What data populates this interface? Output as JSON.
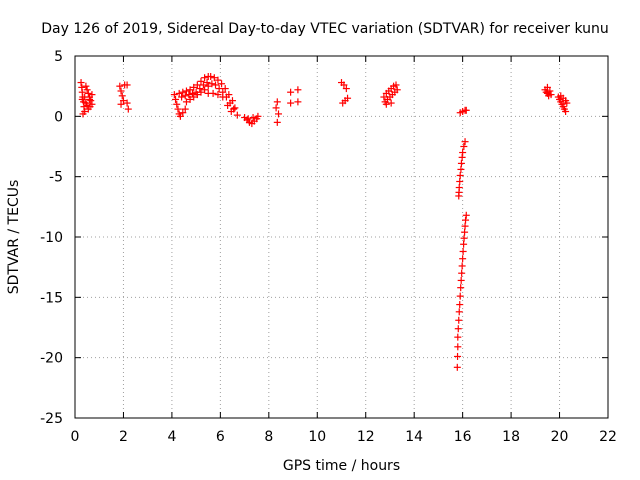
{
  "chart_data": {
    "type": "scatter",
    "title": "Day 126 of 2019, Sidereal Day-to-day VTEC variation (SDTVAR) for receiver kunu",
    "xlabel": "GPS time / hours",
    "ylabel": "SDTVAR / TECUs",
    "xlim": [
      0,
      22
    ],
    "ylim": [
      -25,
      5
    ],
    "xticks": [
      0,
      2,
      4,
      6,
      8,
      10,
      12,
      14,
      16,
      18,
      20,
      22
    ],
    "yticks": [
      5,
      0,
      -5,
      -10,
      -15,
      -20,
      -25
    ],
    "grid": true,
    "marker": "+",
    "color": "#ff0000",
    "series": [
      {
        "name": "SDTVAR",
        "points": [
          [
            0.25,
            2.8
          ],
          [
            0.28,
            2.4
          ],
          [
            0.3,
            2.0
          ],
          [
            0.32,
            1.6
          ],
          [
            0.35,
            1.2
          ],
          [
            0.37,
            0.8
          ],
          [
            0.4,
            0.4
          ],
          [
            0.33,
            0.2
          ],
          [
            0.45,
            2.5
          ],
          [
            0.5,
            2.2
          ],
          [
            0.55,
            1.9
          ],
          [
            0.6,
            1.6
          ],
          [
            0.65,
            1.3
          ],
          [
            0.7,
            1.0
          ],
          [
            0.5,
            0.9
          ],
          [
            0.55,
            0.6
          ],
          [
            0.3,
            1.4
          ],
          [
            0.4,
            1.6
          ],
          [
            0.6,
            1.4
          ],
          [
            0.7,
            1.8
          ],
          [
            0.45,
            1.1
          ],
          [
            0.62,
            0.8
          ],
          [
            1.85,
            2.5
          ],
          [
            1.9,
            2.1
          ],
          [
            1.95,
            1.7
          ],
          [
            2.0,
            1.3
          ],
          [
            1.9,
            1.0
          ],
          [
            2.05,
            2.6
          ],
          [
            2.15,
            2.6
          ],
          [
            2.15,
            1.1
          ],
          [
            2.2,
            0.6
          ],
          [
            4.1,
            1.8
          ],
          [
            4.15,
            1.4
          ],
          [
            4.2,
            1.0
          ],
          [
            4.25,
            0.6
          ],
          [
            4.3,
            0.2
          ],
          [
            4.35,
            0.0
          ],
          [
            4.45,
            0.3
          ],
          [
            4.55,
            0.6
          ],
          [
            4.3,
            1.9
          ],
          [
            4.45,
            2.0
          ],
          [
            4.6,
            2.1
          ],
          [
            4.75,
            2.2
          ],
          [
            4.9,
            2.4
          ],
          [
            5.05,
            2.6
          ],
          [
            5.2,
            2.9
          ],
          [
            5.35,
            3.2
          ],
          [
            5.5,
            3.3
          ],
          [
            4.4,
            1.6
          ],
          [
            4.55,
            1.7
          ],
          [
            4.7,
            1.8
          ],
          [
            4.85,
            1.9
          ],
          [
            5.0,
            2.0
          ],
          [
            5.15,
            2.3
          ],
          [
            5.3,
            2.6
          ],
          [
            5.45,
            2.8
          ],
          [
            4.6,
            1.2
          ],
          [
            4.75,
            1.4
          ],
          [
            4.9,
            1.6
          ],
          [
            5.05,
            1.8
          ],
          [
            5.2,
            2.0
          ],
          [
            5.35,
            2.2
          ],
          [
            5.5,
            2.5
          ],
          [
            5.65,
            2.7
          ],
          [
            5.6,
            3.3
          ],
          [
            5.75,
            3.2
          ],
          [
            5.9,
            3.0
          ],
          [
            6.05,
            2.7
          ],
          [
            6.2,
            2.3
          ],
          [
            6.35,
            1.8
          ],
          [
            6.5,
            1.3
          ],
          [
            6.6,
            0.7
          ],
          [
            6.7,
            0.1
          ],
          [
            5.8,
            2.6
          ],
          [
            5.95,
            2.3
          ],
          [
            6.1,
            2.0
          ],
          [
            6.25,
            1.6
          ],
          [
            6.4,
            1.1
          ],
          [
            6.55,
            0.6
          ],
          [
            5.5,
            1.9
          ],
          [
            5.7,
            1.9
          ],
          [
            5.9,
            1.8
          ],
          [
            6.1,
            1.6
          ],
          [
            6.3,
            0.9
          ],
          [
            6.45,
            0.4
          ],
          [
            7.0,
            -0.1
          ],
          [
            7.1,
            -0.3
          ],
          [
            7.2,
            -0.5
          ],
          [
            7.3,
            -0.6
          ],
          [
            7.4,
            -0.4
          ],
          [
            7.5,
            -0.2
          ],
          [
            7.55,
            0.0
          ],
          [
            7.15,
            -0.2
          ],
          [
            7.35,
            -0.1
          ],
          [
            8.35,
            1.2
          ],
          [
            8.3,
            0.7
          ],
          [
            8.4,
            0.2
          ],
          [
            8.35,
            -0.5
          ],
          [
            8.9,
            2.0
          ],
          [
            8.9,
            1.1
          ],
          [
            9.2,
            2.2
          ],
          [
            9.2,
            1.2
          ],
          [
            11.0,
            2.8
          ],
          [
            11.1,
            2.6
          ],
          [
            11.2,
            2.3
          ],
          [
            11.05,
            1.1
          ],
          [
            11.15,
            1.3
          ],
          [
            11.25,
            1.5
          ],
          [
            12.75,
            1.6
          ],
          [
            12.85,
            1.9
          ],
          [
            12.95,
            2.1
          ],
          [
            13.05,
            2.3
          ],
          [
            13.15,
            2.5
          ],
          [
            13.25,
            2.6
          ],
          [
            12.8,
            1.2
          ],
          [
            12.9,
            1.4
          ],
          [
            13.0,
            1.6
          ],
          [
            13.1,
            1.8
          ],
          [
            13.2,
            2.0
          ],
          [
            13.3,
            2.2
          ],
          [
            12.85,
            1.0
          ],
          [
            13.05,
            1.1
          ],
          [
            15.9,
            0.3
          ],
          [
            16.0,
            0.4
          ],
          [
            16.1,
            0.5
          ],
          [
            16.15,
            0.5
          ],
          [
            16.1,
            -2.1
          ],
          [
            16.05,
            -2.5
          ],
          [
            16.0,
            -3.0
          ],
          [
            15.98,
            -3.4
          ],
          [
            15.95,
            -3.9
          ],
          [
            15.93,
            -4.4
          ],
          [
            15.9,
            -4.9
          ],
          [
            15.88,
            -5.4
          ],
          [
            15.86,
            -5.9
          ],
          [
            15.85,
            -6.3
          ],
          [
            15.84,
            -6.6
          ],
          [
            16.15,
            -8.2
          ],
          [
            16.12,
            -8.6
          ],
          [
            16.1,
            -9.1
          ],
          [
            16.08,
            -9.6
          ],
          [
            16.06,
            -10.1
          ],
          [
            16.04,
            -10.6
          ],
          [
            16.02,
            -11.2
          ],
          [
            16.0,
            -11.8
          ],
          [
            15.98,
            -12.4
          ],
          [
            15.96,
            -13.0
          ],
          [
            15.94,
            -13.6
          ],
          [
            15.92,
            -14.2
          ],
          [
            15.9,
            -14.9
          ],
          [
            15.88,
            -15.6
          ],
          [
            15.86,
            -16.2
          ],
          [
            15.84,
            -16.9
          ],
          [
            15.82,
            -17.6
          ],
          [
            15.8,
            -18.3
          ],
          [
            15.8,
            -19.1
          ],
          [
            15.79,
            -19.9
          ],
          [
            15.78,
            -20.8
          ],
          [
            19.4,
            2.2
          ],
          [
            19.45,
            2.0
          ],
          [
            19.5,
            1.9
          ],
          [
            19.55,
            1.7
          ],
          [
            19.6,
            2.1
          ],
          [
            19.65,
            1.8
          ],
          [
            19.5,
            2.4
          ],
          [
            19.95,
            1.6
          ],
          [
            20.0,
            1.4
          ],
          [
            20.05,
            1.2
          ],
          [
            20.1,
            1.0
          ],
          [
            20.15,
            0.8
          ],
          [
            20.2,
            0.6
          ],
          [
            20.25,
            0.4
          ],
          [
            20.05,
            1.7
          ],
          [
            20.15,
            1.5
          ],
          [
            20.25,
            1.3
          ],
          [
            20.3,
            1.1
          ]
        ]
      }
    ]
  }
}
